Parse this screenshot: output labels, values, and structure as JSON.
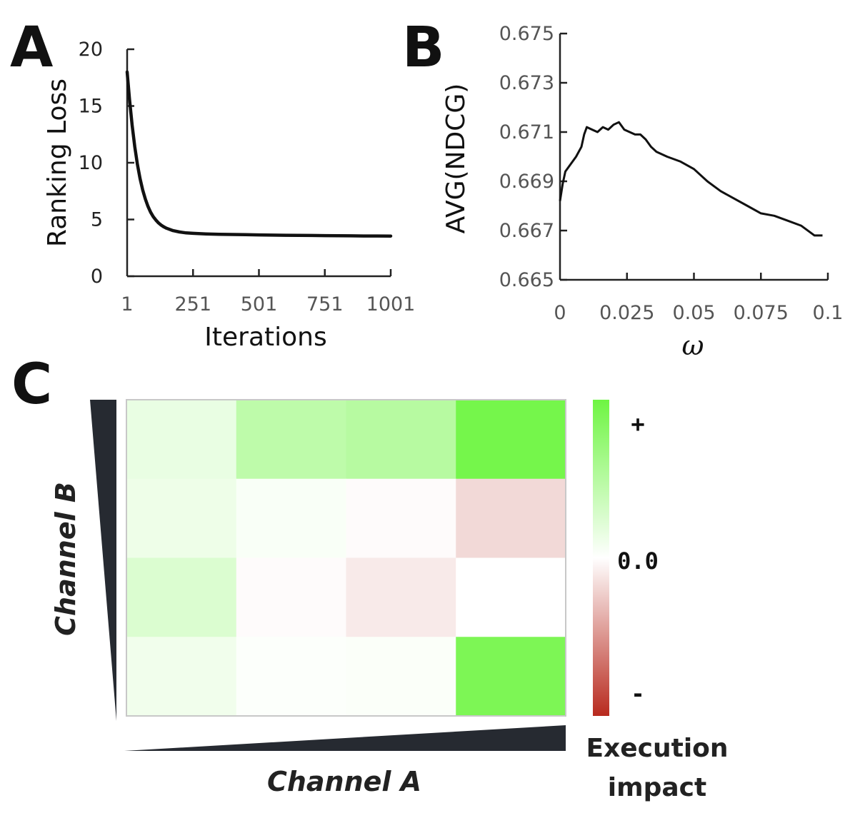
{
  "panels": {
    "a_letter": "A",
    "b_letter": "B",
    "c_letter": "C"
  },
  "chart_data": [
    {
      "type": "line",
      "panel": "A",
      "title": "",
      "xlabel": "Iterations",
      "ylabel": "Ranking Loss",
      "xlim": [
        1,
        1001
      ],
      "ylim": [
        0,
        20
      ],
      "xticks": [
        1,
        251,
        501,
        751,
        1001
      ],
      "xtick_labels": [
        "1",
        "251",
        "501",
        "751",
        "1001"
      ],
      "yticks": [
        0,
        5,
        10,
        15,
        20
      ],
      "ytick_labels": [
        "0",
        "5",
        "10",
        "15",
        "20"
      ],
      "series": [
        {
          "name": "Ranking Loss",
          "x": [
            1,
            10,
            20,
            30,
            40,
            50,
            60,
            70,
            80,
            90,
            100,
            110,
            120,
            130,
            140,
            150,
            175,
            200,
            225,
            251,
            300,
            350,
            400,
            450,
            501,
            551,
            601,
            651,
            701,
            751,
            801,
            851,
            901,
            951,
            1001
          ],
          "y": [
            18.0,
            15.6,
            13.3,
            11.4,
            9.85,
            8.6,
            7.6,
            6.8,
            6.15,
            5.65,
            5.25,
            4.95,
            4.7,
            4.5,
            4.35,
            4.23,
            4.02,
            3.9,
            3.82,
            3.78,
            3.73,
            3.7,
            3.68,
            3.66,
            3.64,
            3.62,
            3.61,
            3.6,
            3.59,
            3.58,
            3.57,
            3.56,
            3.55,
            3.55,
            3.54
          ]
        }
      ]
    },
    {
      "type": "line",
      "panel": "B",
      "title": "",
      "xlabel": "ω",
      "ylabel": "AVG(NDCG)",
      "xlim": [
        0,
        0.1
      ],
      "ylim": [
        0.665,
        0.675
      ],
      "xticks": [
        0,
        0.025,
        0.05,
        0.075,
        0.1
      ],
      "xtick_labels": [
        "0",
        "0.025",
        "0.05",
        "0.075",
        "0.1"
      ],
      "yticks": [
        0.665,
        0.667,
        0.669,
        0.671,
        0.673,
        0.675
      ],
      "ytick_labels": [
        "0.665",
        "0.667",
        "0.669",
        "0.671",
        "0.673",
        "0.675"
      ],
      "series": [
        {
          "name": "AVG(NDCG)",
          "x": [
            0,
            0.001,
            0.002,
            0.004,
            0.006,
            0.008,
            0.009,
            0.01,
            0.012,
            0.014,
            0.016,
            0.018,
            0.02,
            0.022,
            0.024,
            0.026,
            0.028,
            0.03,
            0.032,
            0.034,
            0.036,
            0.04,
            0.045,
            0.05,
            0.055,
            0.06,
            0.065,
            0.07,
            0.075,
            0.08,
            0.085,
            0.09,
            0.095,
            0.098
          ],
          "y": [
            0.6682,
            0.6689,
            0.6694,
            0.6697,
            0.67,
            0.6704,
            0.6709,
            0.6712,
            0.6711,
            0.671,
            0.6712,
            0.6711,
            0.6713,
            0.6714,
            0.6711,
            0.671,
            0.6709,
            0.6709,
            0.6707,
            0.6704,
            0.6702,
            0.67,
            0.6698,
            0.6695,
            0.669,
            0.6686,
            0.6683,
            0.668,
            0.6677,
            0.6676,
            0.6674,
            0.6672,
            0.6668,
            0.6668
          ]
        }
      ]
    },
    {
      "type": "heatmap",
      "panel": "C",
      "title": "",
      "xlabel": "Channel A",
      "ylabel": "Channel B",
      "rows": 4,
      "cols": 4,
      "values": [
        [
          0.15,
          0.45,
          0.5,
          0.95
        ],
        [
          0.12,
          0.04,
          -0.02,
          -0.18
        ],
        [
          0.25,
          -0.02,
          -0.1,
          0.0
        ],
        [
          0.1,
          0.02,
          0.03,
          0.9
        ]
      ],
      "colorbar": {
        "title_line1": "Execution",
        "title_line2": "impact",
        "plus_label": "+",
        "zero_label": "0.0",
        "minus_label": "-",
        "colors": {
          "high": "#6ef542",
          "mid": "#ffffff",
          "low": "#b82a1e"
        }
      }
    }
  ]
}
